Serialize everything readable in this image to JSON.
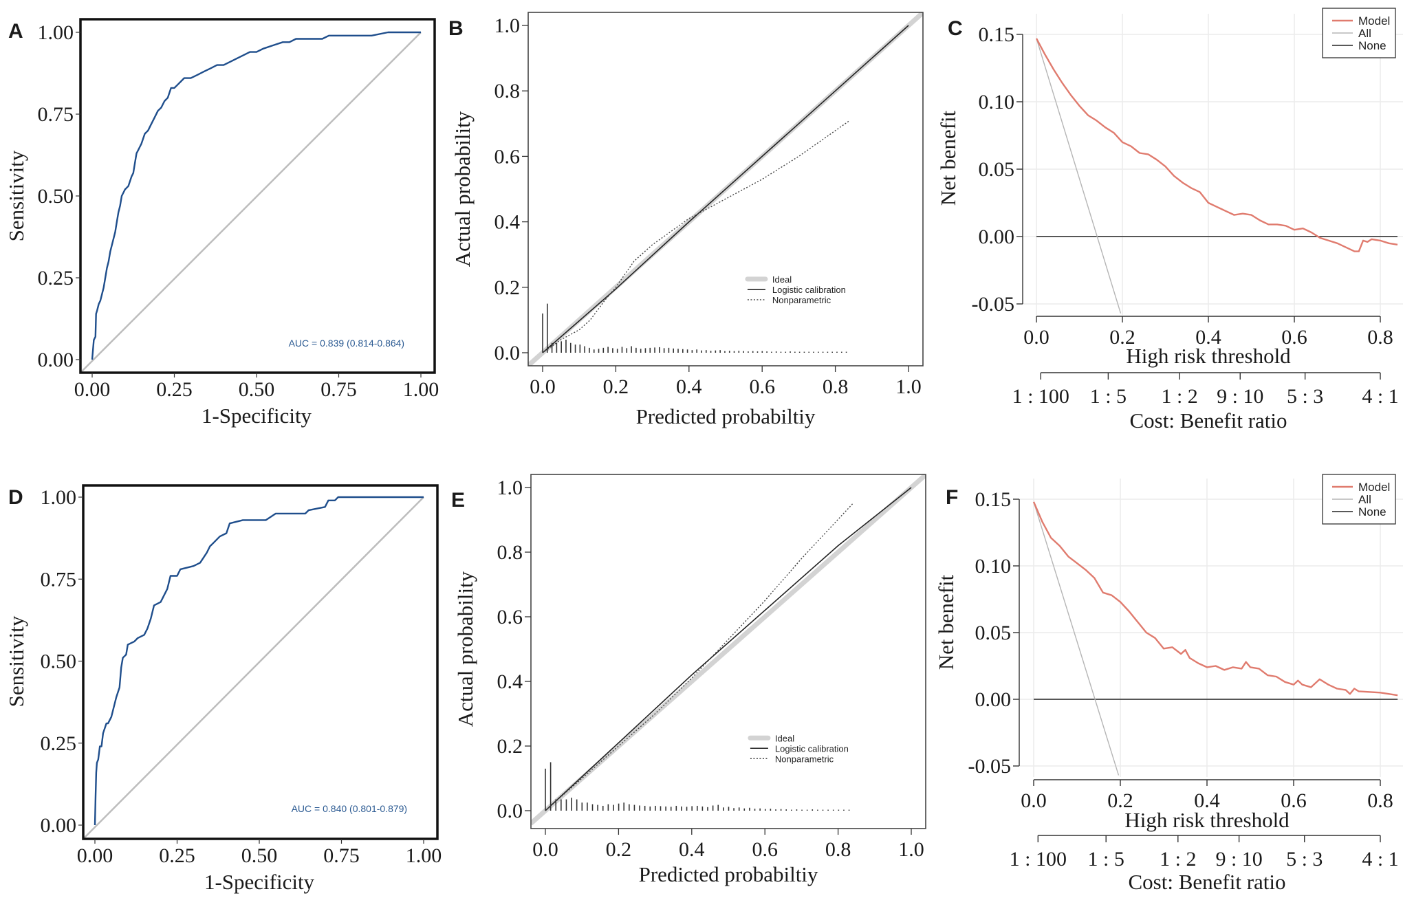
{
  "figure": {
    "panels": [
      "A",
      "B",
      "C",
      "D",
      "E",
      "F"
    ]
  },
  "chart_data": [
    {
      "panel": "A",
      "type": "line",
      "subtype": "roc",
      "xlabel": "1-Specificity",
      "ylabel": "Sensitivity",
      "xlim": [
        0,
        1
      ],
      "ylim": [
        0,
        1
      ],
      "xticks": [
        "0.00",
        "0.25",
        "0.50",
        "0.75",
        "1.00"
      ],
      "yticks": [
        "0.00",
        "0.25",
        "0.50",
        "0.75",
        "1.00"
      ],
      "annotation": "AUC = 0.839 (0.814-0.864)",
      "colors": {
        "curve": "#1f4e8c",
        "reference": "#bdbdbd",
        "annotation": "#2b5a92"
      },
      "series": [
        {
          "name": "ROC",
          "x": [
            0,
            0.005,
            0.01,
            0.012,
            0.015,
            0.02,
            0.025,
            0.03,
            0.035,
            0.04,
            0.045,
            0.05,
            0.055,
            0.06,
            0.065,
            0.07,
            0.075,
            0.08,
            0.085,
            0.09,
            0.1,
            0.11,
            0.12,
            0.125,
            0.13,
            0.135,
            0.14,
            0.145,
            0.15,
            0.16,
            0.17,
            0.18,
            0.19,
            0.2,
            0.21,
            0.22,
            0.23,
            0.24,
            0.25,
            0.26,
            0.27,
            0.28,
            0.3,
            0.32,
            0.34,
            0.36,
            0.38,
            0.4,
            0.42,
            0.44,
            0.46,
            0.48,
            0.5,
            0.52,
            0.55,
            0.58,
            0.6,
            0.62,
            0.65,
            0.7,
            0.72,
            0.75,
            0.8,
            0.85,
            0.9,
            0.92,
            1.0
          ],
          "y": [
            0,
            0.06,
            0.07,
            0.14,
            0.15,
            0.17,
            0.18,
            0.2,
            0.22,
            0.25,
            0.28,
            0.3,
            0.33,
            0.35,
            0.37,
            0.39,
            0.42,
            0.45,
            0.47,
            0.5,
            0.52,
            0.53,
            0.56,
            0.57,
            0.6,
            0.63,
            0.64,
            0.65,
            0.66,
            0.69,
            0.7,
            0.72,
            0.74,
            0.76,
            0.77,
            0.79,
            0.8,
            0.83,
            0.83,
            0.84,
            0.85,
            0.86,
            0.86,
            0.87,
            0.88,
            0.89,
            0.9,
            0.9,
            0.91,
            0.92,
            0.93,
            0.94,
            0.94,
            0.95,
            0.96,
            0.97,
            0.97,
            0.98,
            0.98,
            0.98,
            0.99,
            0.99,
            0.99,
            0.99,
            1.0,
            1.0,
            1.0
          ]
        },
        {
          "name": "Reference",
          "x": [
            0,
            1
          ],
          "y": [
            0,
            1
          ]
        }
      ]
    },
    {
      "panel": "B",
      "type": "line",
      "subtype": "calibration",
      "xlabel": "Predicted probabiltiy",
      "ylabel": "Actual probability",
      "xlim": [
        0,
        1
      ],
      "ylim": [
        0,
        1
      ],
      "xticks": [
        "0.0",
        "0.2",
        "0.4",
        "0.6",
        "0.8",
        "1.0"
      ],
      "yticks": [
        "0.0",
        "0.2",
        "0.4",
        "0.6",
        "0.8",
        "1.0"
      ],
      "legend": [
        "Ideal",
        "Logistic calibration",
        "Nonparametric"
      ],
      "legend_position": "center-right",
      "series": [
        {
          "name": "Ideal",
          "x": [
            -0.04,
            1.04
          ],
          "y": [
            -0.04,
            1.04
          ]
        },
        {
          "name": "Logistic calibration",
          "x": [
            0,
            0.2,
            0.4,
            0.6,
            0.8,
            1.0
          ],
          "y": [
            0,
            0.195,
            0.4,
            0.6,
            0.8,
            1.0
          ]
        },
        {
          "name": "Nonparametric",
          "x": [
            0,
            0.05,
            0.1,
            0.13,
            0.17,
            0.2,
            0.25,
            0.3,
            0.35,
            0.4,
            0.45,
            0.5,
            0.6,
            0.7,
            0.84
          ],
          "y": [
            0,
            0.04,
            0.07,
            0.1,
            0.16,
            0.2,
            0.28,
            0.33,
            0.37,
            0.41,
            0.44,
            0.47,
            0.53,
            0.6,
            0.71
          ]
        }
      ],
      "rug_heights": [
        0.12,
        0.15,
        0.03,
        0.03,
        0.035,
        0.04,
        0.03,
        0.025,
        0.025,
        0.02,
        0.015,
        0.01,
        0.012,
        0.015,
        0.018,
        0.014,
        0.012,
        0.018,
        0.014,
        0.02,
        0.015,
        0.012,
        0.014,
        0.015,
        0.016,
        0.017,
        0.014,
        0.015,
        0.013,
        0.012,
        0.011,
        0.01,
        0.008,
        0.01,
        0.007,
        0.008,
        0.006,
        0.007,
        0.008,
        0.005,
        0.006,
        0.005,
        0.006,
        0.005,
        0.004,
        0.005,
        0.004,
        0.005,
        0.004,
        0.003,
        0.004,
        0.003,
        0.003,
        0.004,
        0.003,
        0.003,
        0.003,
        0.003,
        0.003,
        0.003,
        0.003,
        0.003,
        0.003,
        0.003,
        0.003,
        0.003
      ],
      "rug_range": [
        0,
        0.83
      ]
    },
    {
      "panel": "C",
      "type": "line",
      "subtype": "decision-curve",
      "xlabel": "High risk threshold",
      "ylabel": "Net benefit",
      "xlim": [
        0,
        0.84
      ],
      "ylim": [
        -0.05,
        0.15
      ],
      "xticks": [
        "0.0",
        "0.2",
        "0.4",
        "0.6",
        "0.8"
      ],
      "yticks": [
        "-0.05",
        "0.00",
        "0.05",
        "0.10",
        "0.15"
      ],
      "secondary_axis_label": "Cost: Benefit ratio",
      "secondary_ticks": [
        "1:100",
        "1:5",
        "1:2",
        "9:10",
        "5:3",
        "4:1"
      ],
      "secondary_tick_positions": [
        0.01,
        0.167,
        0.333,
        0.474,
        0.625,
        0.8
      ],
      "legend": [
        "Model",
        "All",
        "None"
      ],
      "legend_position": "top-right",
      "grid": true,
      "colors": {
        "Model": "#e07b6e",
        "All": "#b5b5b5",
        "None": "#222222"
      },
      "series": [
        {
          "name": "Model",
          "x": [
            0,
            0.02,
            0.04,
            0.06,
            0.08,
            0.1,
            0.12,
            0.14,
            0.16,
            0.18,
            0.2,
            0.22,
            0.24,
            0.26,
            0.28,
            0.3,
            0.32,
            0.34,
            0.36,
            0.38,
            0.4,
            0.42,
            0.44,
            0.46,
            0.48,
            0.5,
            0.52,
            0.54,
            0.56,
            0.58,
            0.6,
            0.62,
            0.64,
            0.66,
            0.68,
            0.7,
            0.72,
            0.74,
            0.75,
            0.76,
            0.77,
            0.78,
            0.8,
            0.82,
            0.84
          ],
          "y": [
            0.147,
            0.135,
            0.124,
            0.114,
            0.105,
            0.097,
            0.09,
            0.086,
            0.081,
            0.077,
            0.07,
            0.067,
            0.062,
            0.061,
            0.057,
            0.052,
            0.045,
            0.04,
            0.036,
            0.033,
            0.025,
            0.022,
            0.019,
            0.016,
            0.017,
            0.016,
            0.012,
            0.009,
            0.009,
            0.008,
            0.005,
            0.006,
            0.003,
            -0.001,
            -0.003,
            -0.005,
            -0.008,
            -0.011,
            -0.011,
            -0.003,
            -0.004,
            -0.002,
            -0.003,
            -0.005,
            -0.006
          ]
        },
        {
          "name": "All",
          "x": [
            0,
            0.196
          ],
          "y": [
            0.147,
            -0.057
          ]
        },
        {
          "name": "None",
          "x": [
            0,
            0.84
          ],
          "y": [
            0,
            0
          ]
        }
      ]
    },
    {
      "panel": "D",
      "type": "line",
      "subtype": "roc",
      "xlabel": "1-Specificity",
      "ylabel": "Sensitivity",
      "xlim": [
        0,
        1
      ],
      "ylim": [
        0,
        1
      ],
      "xticks": [
        "0.00",
        "0.25",
        "0.50",
        "0.75",
        "1.00"
      ],
      "yticks": [
        "0.00",
        "0.25",
        "0.50",
        "0.75",
        "1.00"
      ],
      "annotation": "AUC = 0.840 (0.801-0.879)",
      "colors": {
        "curve": "#1f4e8c",
        "reference": "#bdbdbd",
        "annotation": "#2b5a92"
      },
      "series": [
        {
          "name": "ROC",
          "x": [
            0,
            0.002,
            0.004,
            0.006,
            0.01,
            0.015,
            0.02,
            0.025,
            0.035,
            0.04,
            0.05,
            0.06,
            0.065,
            0.075,
            0.08,
            0.085,
            0.095,
            0.1,
            0.12,
            0.13,
            0.15,
            0.16,
            0.17,
            0.18,
            0.2,
            0.21,
            0.22,
            0.23,
            0.25,
            0.26,
            0.3,
            0.32,
            0.34,
            0.35,
            0.36,
            0.38,
            0.4,
            0.41,
            0.45,
            0.52,
            0.55,
            0.64,
            0.65,
            0.7,
            0.71,
            0.73,
            0.74,
            1.0
          ],
          "y": [
            0,
            0.09,
            0.16,
            0.19,
            0.2,
            0.24,
            0.24,
            0.28,
            0.31,
            0.31,
            0.33,
            0.37,
            0.39,
            0.42,
            0.48,
            0.51,
            0.52,
            0.55,
            0.56,
            0.57,
            0.58,
            0.6,
            0.63,
            0.67,
            0.68,
            0.7,
            0.72,
            0.76,
            0.76,
            0.78,
            0.79,
            0.8,
            0.83,
            0.85,
            0.86,
            0.88,
            0.89,
            0.92,
            0.93,
            0.93,
            0.95,
            0.95,
            0.96,
            0.97,
            0.99,
            0.99,
            1.0,
            1.0
          ]
        },
        {
          "name": "Reference",
          "x": [
            0,
            1
          ],
          "y": [
            0,
            1
          ]
        }
      ]
    },
    {
      "panel": "E",
      "type": "line",
      "subtype": "calibration",
      "xlabel": "Predicted probabiltiy",
      "ylabel": "Actual probability",
      "xlim": [
        0,
        1
      ],
      "ylim": [
        0,
        1
      ],
      "xticks": [
        "0.0",
        "0.2",
        "0.4",
        "0.6",
        "0.8",
        "1.0"
      ],
      "yticks": [
        "0.0",
        "0.2",
        "0.4",
        "0.6",
        "0.8",
        "1.0"
      ],
      "legend": [
        "Ideal",
        "Logistic calibration",
        "Nonparametric"
      ],
      "legend_position": "center-right",
      "series": [
        {
          "name": "Ideal",
          "x": [
            -0.04,
            1.04
          ],
          "y": [
            -0.04,
            1.04
          ]
        },
        {
          "name": "Logistic calibration",
          "x": [
            0,
            0.2,
            0.4,
            0.6,
            0.8,
            1.0
          ],
          "y": [
            0,
            0.21,
            0.42,
            0.62,
            0.82,
            1.0
          ]
        },
        {
          "name": "Nonparametric",
          "x": [
            0,
            0.1,
            0.2,
            0.3,
            0.4,
            0.5,
            0.6,
            0.7,
            0.84
          ],
          "y": [
            0,
            0.1,
            0.2,
            0.3,
            0.41,
            0.53,
            0.65,
            0.78,
            0.95
          ]
        }
      ],
      "rug_heights": [
        0.13,
        0.15,
        0.035,
        0.035,
        0.035,
        0.04,
        0.035,
        0.025,
        0.025,
        0.02,
        0.018,
        0.015,
        0.02,
        0.018,
        0.022,
        0.025,
        0.02,
        0.018,
        0.016,
        0.015,
        0.013,
        0.015,
        0.014,
        0.013,
        0.012,
        0.015,
        0.013,
        0.012,
        0.014,
        0.015,
        0.013,
        0.011,
        0.016,
        0.018,
        0.01,
        0.012,
        0.008,
        0.01,
        0.007,
        0.009,
        0.006,
        0.007,
        0.005,
        0.006,
        0.004,
        0.005,
        0.004,
        0.003,
        0.004,
        0.003,
        0.003,
        0.004,
        0.003,
        0.003,
        0.003,
        0.003,
        0.003,
        0.003,
        0.003
      ],
      "rug_range": [
        0,
        0.83
      ]
    },
    {
      "panel": "F",
      "type": "line",
      "subtype": "decision-curve",
      "xlabel": "High risk threshold",
      "ylabel": "Net benefit",
      "xlim": [
        0,
        0.84
      ],
      "ylim": [
        -0.05,
        0.15
      ],
      "xticks": [
        "0.0",
        "0.2",
        "0.4",
        "0.6",
        "0.8"
      ],
      "yticks": [
        "-0.05",
        "0.00",
        "0.05",
        "0.10",
        "0.15"
      ],
      "secondary_axis_label": "Cost: Benefit ratio",
      "secondary_ticks": [
        "1:100",
        "1:5",
        "1:2",
        "9:10",
        "5:3",
        "4:1"
      ],
      "secondary_tick_positions": [
        0.01,
        0.167,
        0.333,
        0.474,
        0.625,
        0.8
      ],
      "legend": [
        "Model",
        "All",
        "None"
      ],
      "legend_position": "top-right",
      "grid": true,
      "colors": {
        "Model": "#e07b6e",
        "All": "#b5b5b5",
        "None": "#222222"
      },
      "series": [
        {
          "name": "Model",
          "x": [
            0,
            0.02,
            0.04,
            0.06,
            0.08,
            0.1,
            0.12,
            0.14,
            0.16,
            0.18,
            0.2,
            0.22,
            0.24,
            0.26,
            0.28,
            0.3,
            0.32,
            0.34,
            0.35,
            0.36,
            0.38,
            0.4,
            0.42,
            0.44,
            0.46,
            0.48,
            0.49,
            0.5,
            0.52,
            0.54,
            0.56,
            0.58,
            0.6,
            0.61,
            0.62,
            0.64,
            0.66,
            0.68,
            0.7,
            0.72,
            0.73,
            0.74,
            0.75,
            0.8,
            0.84
          ],
          "y": [
            0.148,
            0.133,
            0.121,
            0.115,
            0.107,
            0.102,
            0.097,
            0.091,
            0.08,
            0.078,
            0.073,
            0.066,
            0.058,
            0.05,
            0.046,
            0.038,
            0.039,
            0.034,
            0.037,
            0.031,
            0.027,
            0.024,
            0.025,
            0.022,
            0.024,
            0.023,
            0.028,
            0.024,
            0.023,
            0.018,
            0.017,
            0.013,
            0.011,
            0.014,
            0.011,
            0.009,
            0.015,
            0.011,
            0.008,
            0.007,
            0.004,
            0.008,
            0.006,
            0.005,
            0.003
          ]
        },
        {
          "name": "All",
          "x": [
            0,
            0.196
          ],
          "y": [
            0.148,
            -0.057
          ]
        },
        {
          "name": "None",
          "x": [
            0,
            0.84
          ],
          "y": [
            0,
            0
          ]
        }
      ]
    }
  ]
}
